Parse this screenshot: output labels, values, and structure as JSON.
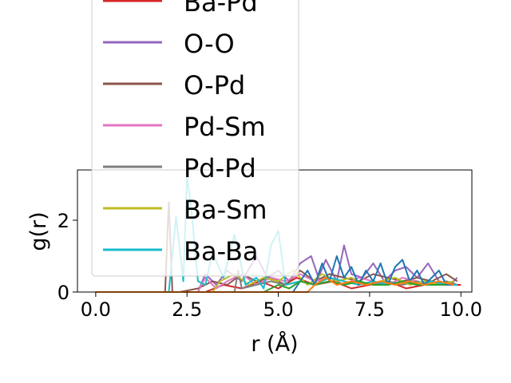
{
  "chart_data": {
    "type": "line",
    "title": "",
    "xlabel": "r (Å)",
    "ylabel": "g(r)",
    "xlim": [
      -0.5,
      10.3
    ],
    "ylim": [
      0,
      3.4
    ],
    "xticks": [
      0.0,
      2.5,
      5.0,
      7.5,
      10.0
    ],
    "xtick_labels": [
      "0.0",
      "2.5",
      "5.0",
      "7.5",
      "10.0"
    ],
    "yticks": [
      0,
      2
    ],
    "ytick_labels": [
      "0",
      "2"
    ],
    "grid": false,
    "legend_position": "upper-left (extends above plot)",
    "series": [
      {
        "name": "Ba-Pd",
        "color": "#d62728",
        "x": [
          0,
          1.0,
          2.0,
          3.0,
          3.5,
          4.0,
          4.5,
          5.0,
          5.5,
          6.0,
          6.5,
          7.0,
          7.5,
          8.0,
          8.5,
          9.0,
          9.5,
          10.0
        ],
        "y": [
          0,
          0,
          0,
          0,
          0.2,
          0.1,
          0.3,
          0.1,
          0.4,
          0.2,
          0.3,
          0.1,
          0.2,
          0.3,
          0.1,
          0.2,
          0.2,
          0.2
        ]
      },
      {
        "name": "O-O",
        "color": "#9467bd",
        "x": [
          0,
          2.8,
          3.0,
          3.3,
          3.6,
          4.0,
          4.4,
          4.7,
          5.0,
          5.3,
          5.6,
          5.9,
          6.1,
          6.3,
          6.6,
          6.8,
          7.0,
          7.3,
          7.6,
          7.9,
          8.2,
          8.5,
          8.8,
          9.1,
          9.4,
          9.7,
          9.9
        ],
        "y": [
          0,
          0,
          0.5,
          0.2,
          0.6,
          0.3,
          1.0,
          0.4,
          0.6,
          0.3,
          0.8,
          1.0,
          0.4,
          0.9,
          0.3,
          1.3,
          0.5,
          0.4,
          0.8,
          0.3,
          0.6,
          0.7,
          0.4,
          0.8,
          0.3,
          0.2,
          0.4
        ]
      },
      {
        "name": "O-Pd",
        "color": "#8c564b",
        "x": [
          0,
          1.9,
          2.0,
          2.1,
          2.3,
          2.8,
          3.2,
          3.6,
          4.0,
          4.4,
          4.8,
          5.2,
          5.6,
          6.0,
          6.4,
          6.8,
          7.2,
          7.6,
          8.0,
          8.4,
          8.8,
          9.2,
          9.6,
          9.9
        ],
        "y": [
          0,
          0,
          2.5,
          0,
          0,
          0.1,
          0.3,
          0.2,
          0.5,
          0.3,
          0.4,
          0.2,
          0.6,
          0.3,
          0.5,
          0.4,
          0.3,
          0.5,
          0.4,
          0.3,
          0.4,
          0.3,
          0.5,
          0.3
        ]
      },
      {
        "name": "Pd-Sm",
        "color": "#e377c2",
        "x": [
          0,
          2.8,
          3.0,
          3.3,
          3.6,
          4.0,
          4.4,
          4.8,
          5.2,
          5.6,
          6.0,
          6.4,
          6.8,
          7.2,
          7.6,
          8.0,
          8.4,
          8.8,
          9.2,
          9.6,
          9.9
        ],
        "y": [
          0,
          0,
          0.4,
          0.1,
          0.3,
          0.5,
          0.2,
          0.4,
          0.3,
          0.5,
          0.3,
          0.4,
          0.2,
          0.4,
          0.3,
          0.2,
          0.4,
          0.3,
          0.2,
          0.3,
          0.2
        ]
      },
      {
        "name": "Pd-Pd",
        "color": "#7f7f7f",
        "x": [
          0,
          3.8,
          3.9,
          4.0,
          4.4,
          4.8,
          5.2,
          5.6,
          6.0,
          6.4,
          6.8,
          7.2,
          7.6,
          8.0,
          8.4,
          8.8,
          9.2,
          9.6,
          9.9
        ],
        "y": [
          0,
          0,
          0.6,
          0.1,
          0.2,
          0.3,
          0.2,
          0.3,
          0.2,
          0.4,
          0.2,
          0.3,
          0.2,
          0.3,
          0.2,
          0.3,
          0.2,
          0.3,
          0.2
        ]
      },
      {
        "name": "Ba-Sm",
        "color": "#bcbd22",
        "x": [
          0,
          3.2,
          3.4,
          3.8,
          4.2,
          4.6,
          5.0,
          5.4,
          5.8,
          6.2,
          6.6,
          7.0,
          7.4,
          7.8,
          8.2,
          8.6,
          9.0,
          9.4,
          9.8
        ],
        "y": [
          0,
          0,
          0.3,
          0.5,
          0.2,
          0.4,
          0.3,
          0.6,
          0.2,
          0.5,
          0.3,
          0.4,
          0.2,
          0.3,
          0.4,
          0.2,
          0.3,
          0.2,
          0.3
        ]
      },
      {
        "name": "Ba-Ba",
        "color": "#17becf",
        "x": [
          0,
          2.0,
          2.2,
          2.4,
          2.5,
          2.6,
          2.8,
          3.0,
          3.2,
          3.5,
          3.8,
          4.1,
          4.4,
          4.6,
          4.8,
          5.0,
          5.2,
          5.6,
          6.0,
          6.4,
          6.8,
          7.2,
          7.6,
          8.0,
          8.4,
          8.8,
          9.2,
          9.6,
          9.9
        ],
        "y": [
          0,
          0,
          2.1,
          0.3,
          3.2,
          2.5,
          0.3,
          0.2,
          1.1,
          0.4,
          1.6,
          0.2,
          0.4,
          0.1,
          1.3,
          1.7,
          0.2,
          0.3,
          0.2,
          0.4,
          0.3,
          0.2,
          0.3,
          0.2,
          0.3,
          0.2,
          0.3,
          0.2,
          0.2
        ]
      },
      {
        "color": "#1f77b4",
        "x": [
          0,
          5.4,
          5.6,
          5.8,
          6.0,
          6.2,
          6.4,
          6.6,
          6.8,
          7.0,
          7.2,
          7.4,
          7.6,
          7.8,
          8.0,
          8.2,
          8.4,
          8.6,
          8.8,
          9.0,
          9.2,
          9.4,
          9.6,
          9.8
        ],
        "y": [
          0,
          0,
          0.3,
          0.6,
          0.2,
          0.8,
          0.3,
          1.0,
          0.4,
          0.7,
          0.2,
          0.6,
          0.3,
          0.8,
          0.2,
          0.7,
          0.9,
          0.3,
          0.6,
          0.2,
          0.4,
          0.6,
          0.2,
          0.2
        ]
      },
      {
        "color": "#2ca02c",
        "x": [
          0,
          4.6,
          4.8,
          5.0,
          5.3,
          5.6,
          6.0,
          6.4,
          6.8,
          7.2,
          7.6,
          8.0,
          8.4,
          8.8,
          9.2,
          9.6
        ],
        "y": [
          0,
          0,
          0.1,
          0.2,
          0.1,
          0.3,
          0.2,
          0.3,
          0.2,
          0.3,
          0.2,
          0.2,
          0.3,
          0.2,
          0.2,
          0.2
        ]
      },
      {
        "color": "#ff7f0e",
        "x": [
          0,
          5.8,
          6.0,
          6.3,
          6.6,
          7.0,
          7.4,
          7.8,
          8.2,
          8.6,
          9.0,
          9.4,
          9.8
        ],
        "y": [
          0,
          0,
          0.2,
          0.4,
          0.2,
          0.3,
          0.2,
          0.3,
          0.2,
          0.3,
          0.2,
          0.3,
          0.2
        ]
      }
    ]
  }
}
